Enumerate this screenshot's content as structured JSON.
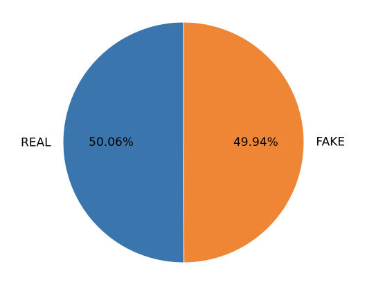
{
  "chart_data": {
    "type": "pie",
    "title": "",
    "slices": [
      {
        "label": "REAL",
        "value": 50.06,
        "pct_label": "50.06%",
        "color": "#3a75ad"
      },
      {
        "label": "FAKE",
        "value": 49.94,
        "pct_label": "49.94%",
        "color": "#ef8636"
      }
    ],
    "start_angle_deg": 90,
    "direction": "counterclockwise",
    "legend": "none"
  }
}
